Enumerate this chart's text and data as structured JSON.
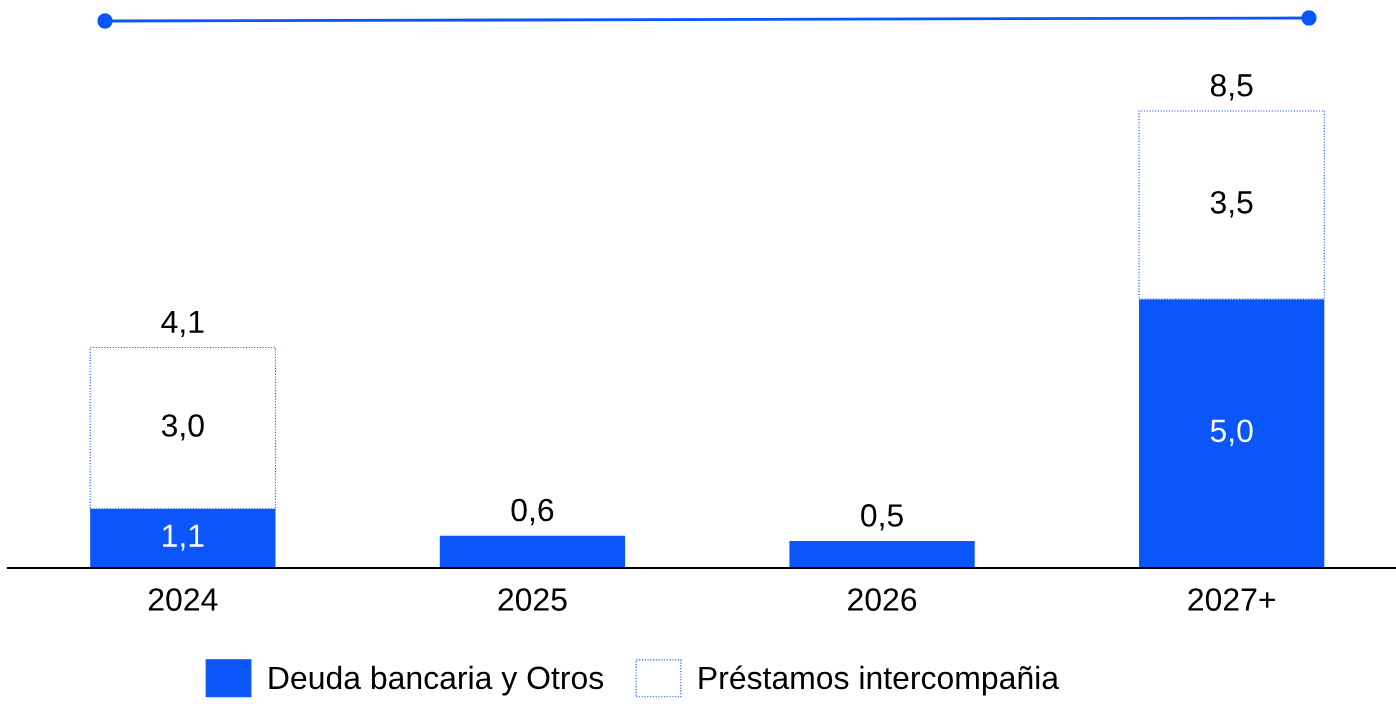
{
  "chart_data": {
    "type": "bar",
    "stacked": true,
    "categories": [
      "2024",
      "2025",
      "2026",
      "2027+"
    ],
    "series": [
      {
        "name": "Deuda bancaria y Otros",
        "color": "#0a56fa",
        "values": [
          1.1,
          0.6,
          0.5,
          5.0
        ],
        "value_labels": [
          "1,1",
          "0,6",
          "0,5",
          "5,0"
        ]
      },
      {
        "name": "Préstamos intercompañia",
        "color": "#ffffff",
        "values": [
          3.0,
          null,
          null,
          3.5
        ],
        "value_labels": [
          "3,0",
          null,
          null,
          "3,5"
        ]
      }
    ],
    "totals": [
      "4,1",
      null,
      null,
      "8,5"
    ],
    "legend": "bottom",
    "grid": false
  }
}
